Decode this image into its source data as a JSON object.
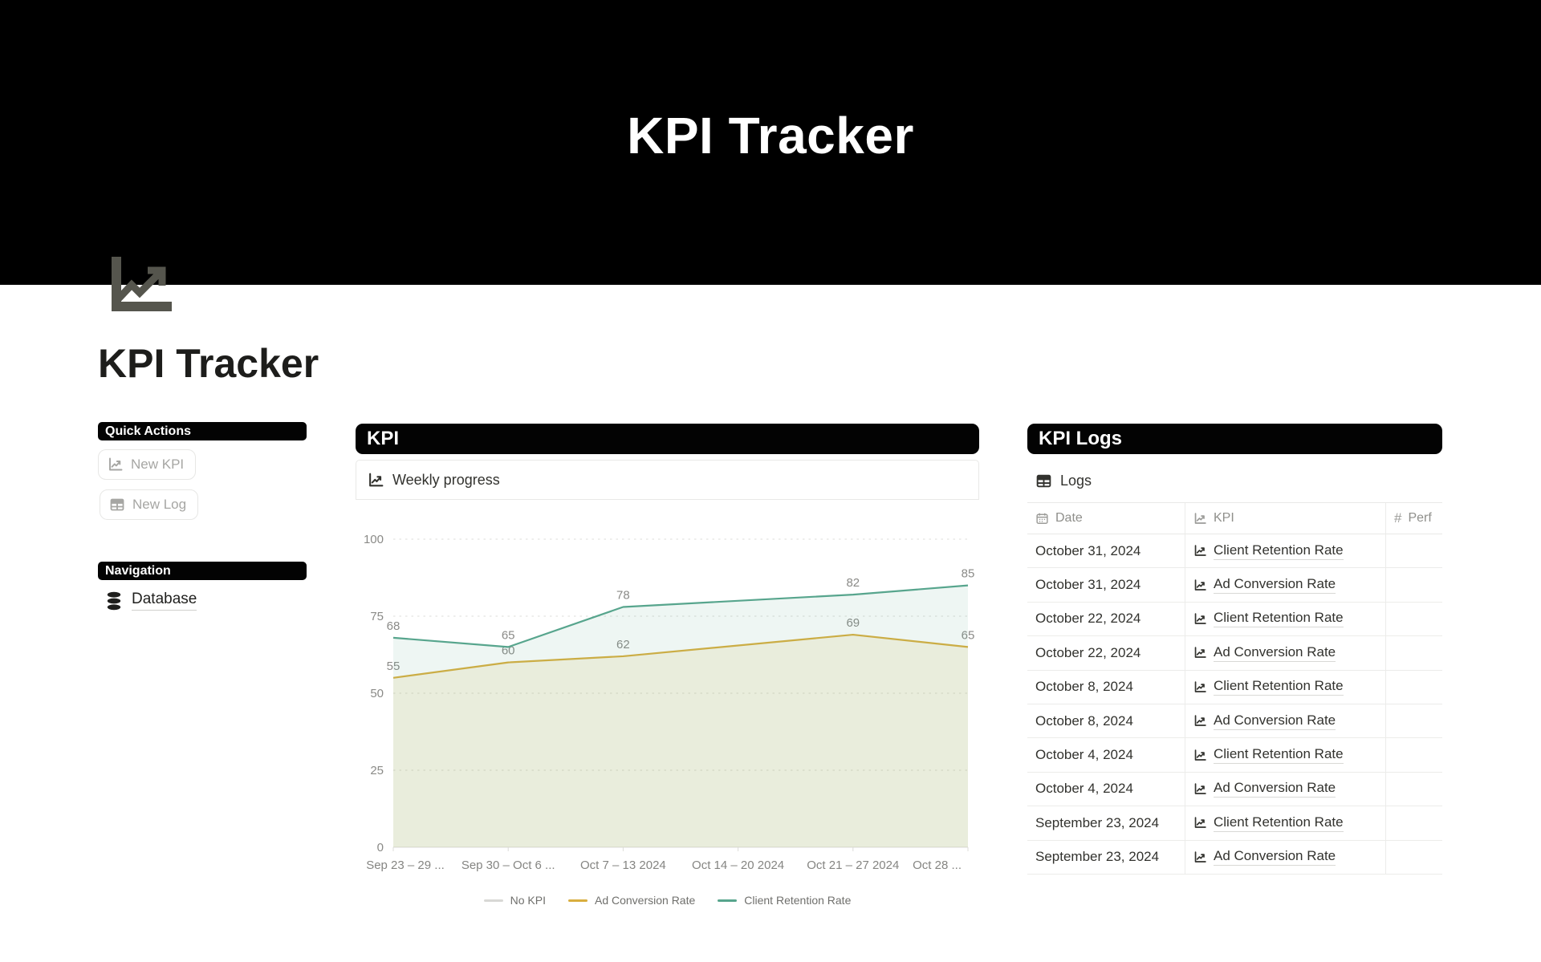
{
  "banner": {
    "title": "KPI Tracker"
  },
  "page": {
    "title": "KPI Tracker",
    "icon": "line-chart-icon"
  },
  "sidebar": {
    "quick_actions": {
      "label": "Quick Actions",
      "buttons": [
        {
          "label": "New KPI",
          "icon": "line-chart-icon"
        },
        {
          "label": "New Log",
          "icon": "table-icon"
        }
      ]
    },
    "navigation": {
      "label": "Navigation",
      "items": [
        {
          "label": "Database",
          "icon": "database-icon"
        }
      ]
    }
  },
  "kpi_section": {
    "header": "KPI",
    "card_title": "Weekly progress",
    "card_icon": "line-chart-icon"
  },
  "chart_data": {
    "type": "line",
    "title": "Weekly progress",
    "x": [
      "Sep 23 – 29 ...",
      "Sep 30 – Oct 6 ...",
      "Oct 7 – 13 2024",
      "Oct 14 – 20 2024",
      "Oct 21 – 27 2024",
      "Oct 28 ..."
    ],
    "series": [
      {
        "name": "No KPI",
        "color": "#d8d8d5",
        "fill_opacity": 0,
        "values": []
      },
      {
        "name": "Ad Conversion Rate",
        "color": "#d9ae3e",
        "fill_opacity": 0.13,
        "values": [
          55,
          60,
          62,
          null,
          69,
          65
        ]
      },
      {
        "name": "Client Retention Rate",
        "color": "#57a58d",
        "fill_opacity": 0.1,
        "values": [
          68,
          65,
          78,
          null,
          82,
          85
        ]
      }
    ],
    "ylim": [
      0,
      100
    ],
    "yticks": [
      0,
      25,
      50,
      75,
      100
    ],
    "grid": "dotted",
    "legend_position": "bottom"
  },
  "logs_section": {
    "header": "KPI Logs",
    "table_title": "Logs",
    "columns": [
      {
        "label": "Date",
        "icon": "calendar-icon"
      },
      {
        "label": "KPI",
        "icon": "line-chart-icon"
      },
      {
        "label": "Perf",
        "icon": "hash-icon"
      }
    ],
    "rows": [
      {
        "date": "October 31, 2024",
        "kpi": "Client Retention Rate"
      },
      {
        "date": "October 31, 2024",
        "kpi": "Ad Conversion Rate"
      },
      {
        "date": "October 22, 2024",
        "kpi": "Client Retention Rate"
      },
      {
        "date": "October 22, 2024",
        "kpi": "Ad Conversion Rate"
      },
      {
        "date": "October 8, 2024",
        "kpi": "Client Retention Rate"
      },
      {
        "date": "October 8, 2024",
        "kpi": "Ad Conversion Rate"
      },
      {
        "date": "October 4, 2024",
        "kpi": "Client Retention Rate"
      },
      {
        "date": "October 4, 2024",
        "kpi": "Ad Conversion Rate"
      },
      {
        "date": "September 23, 2024",
        "kpi": "Client Retention Rate"
      },
      {
        "date": "September 23, 2024",
        "kpi": "Ad Conversion Rate"
      }
    ]
  },
  "colors": {
    "pill_bg": "#030303",
    "pill_text": "#ffffff",
    "banner_bg": "#000000"
  }
}
